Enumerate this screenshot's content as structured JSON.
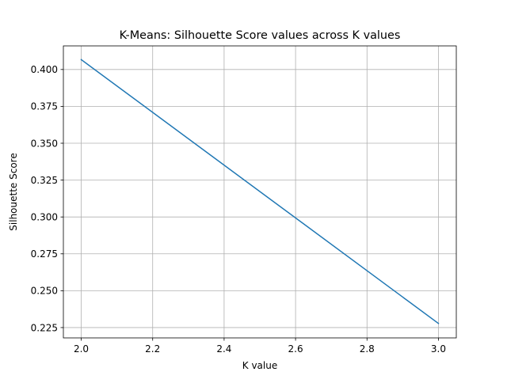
{
  "chart_data": {
    "type": "line",
    "title": "K-Means: Silhouette Score values across K values",
    "xlabel": "K value",
    "ylabel": "Silhouette Score",
    "xlim": [
      1.95,
      3.05
    ],
    "ylim": [
      0.218,
      0.416
    ],
    "xticks": [
      2.0,
      2.2,
      2.4,
      2.6,
      2.8,
      3.0
    ],
    "xtick_labels": [
      "2.0",
      "2.2",
      "2.4",
      "2.6",
      "2.8",
      "3.0"
    ],
    "yticks": [
      0.225,
      0.25,
      0.275,
      0.3,
      0.325,
      0.35,
      0.375,
      0.4
    ],
    "ytick_labels": [
      "0.225",
      "0.250",
      "0.275",
      "0.300",
      "0.325",
      "0.350",
      "0.375",
      "0.400"
    ],
    "grid": true,
    "series": [
      {
        "color": "#1f77b4",
        "x": [
          2,
          3
        ],
        "y": [
          0.4067,
          0.2278
        ]
      }
    ]
  }
}
